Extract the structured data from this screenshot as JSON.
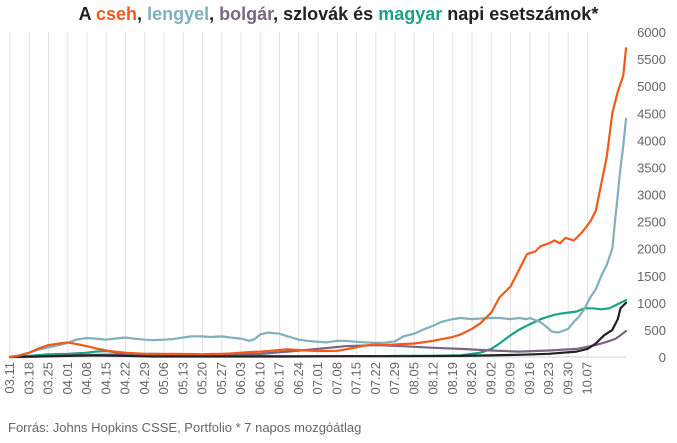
{
  "title": {
    "prefix": "A ",
    "parts": [
      {
        "text": "cseh",
        "color": "#f05a1a"
      },
      {
        "text": ", ",
        "color": "#222222"
      },
      {
        "text": "lengyel",
        "color": "#7fb0bb"
      },
      {
        "text": ", ",
        "color": "#222222"
      },
      {
        "text": "bolgár",
        "color": "#7c6585"
      },
      {
        "text": ", szlovák és ",
        "color": "#222222"
      },
      {
        "text": "magyar",
        "color": "#1aa38a"
      },
      {
        "text": " napi esetszámok*",
        "color": "#222222"
      }
    ]
  },
  "source": "Forrás: Johns Hopkins CSSE, Portfolio   * 7 napos mozgóátlag",
  "chart_data": {
    "type": "line",
    "title": "A cseh, lengyel, bolgár, szlovák és magyar napi esetszámok*",
    "x_ticks": [
      "03.11",
      "03.18",
      "03.25",
      "04.01",
      "04.08",
      "04.15",
      "04.22",
      "04.29",
      "05.06",
      "05.13",
      "05.20",
      "05.27",
      "06.03",
      "06.10",
      "06.17",
      "06.24",
      "07.01",
      "07.08",
      "07.15",
      "07.22",
      "07.29",
      "08.05",
      "08.12",
      "08.19",
      "08.26",
      "09.02",
      "09.09",
      "09.16",
      "09.23",
      "09.30",
      "10.07"
    ],
    "ylim": [
      0,
      6000
    ],
    "y_ticks": [
      0,
      500,
      1000,
      1500,
      2000,
      2500,
      3000,
      3500,
      4000,
      4500,
      5000,
      5500,
      6000
    ],
    "y_axis_position": "right",
    "grid": "vertical",
    "series": [
      {
        "name": "cseh",
        "color": "#f05a1a",
        "points": [
          [
            0,
            0
          ],
          [
            3,
            20
          ],
          [
            7,
            80
          ],
          [
            10,
            150
          ],
          [
            14,
            220
          ],
          [
            18,
            250
          ],
          [
            21,
            270
          ],
          [
            24,
            240
          ],
          [
            28,
            200
          ],
          [
            31,
            160
          ],
          [
            35,
            120
          ],
          [
            38,
            100
          ],
          [
            42,
            80
          ],
          [
            45,
            70
          ],
          [
            49,
            60
          ],
          [
            52,
            55
          ],
          [
            56,
            55
          ],
          [
            59,
            60
          ],
          [
            63,
            55
          ],
          [
            66,
            55
          ],
          [
            70,
            50
          ],
          [
            73,
            55
          ],
          [
            77,
            60
          ],
          [
            80,
            65
          ],
          [
            84,
            80
          ],
          [
            87,
            90
          ],
          [
            91,
            100
          ],
          [
            94,
            110
          ],
          [
            98,
            130
          ],
          [
            101,
            140
          ],
          [
            105,
            130
          ],
          [
            108,
            120
          ],
          [
            112,
            110
          ],
          [
            115,
            110
          ],
          [
            119,
            115
          ],
          [
            122,
            140
          ],
          [
            126,
            180
          ],
          [
            129,
            210
          ],
          [
            133,
            230
          ],
          [
            136,
            220
          ],
          [
            140,
            230
          ],
          [
            143,
            240
          ],
          [
            147,
            250
          ],
          [
            150,
            270
          ],
          [
            154,
            300
          ],
          [
            157,
            330
          ],
          [
            161,
            370
          ],
          [
            164,
            420
          ],
          [
            168,
            520
          ],
          [
            171,
            620
          ],
          [
            175,
            820
          ],
          [
            178,
            1100
          ],
          [
            182,
            1300
          ],
          [
            185,
            1600
          ],
          [
            188,
            1900
          ],
          [
            191,
            1950
          ],
          [
            193,
            2050
          ],
          [
            196,
            2100
          ],
          [
            198,
            2150
          ],
          [
            200,
            2100
          ],
          [
            202,
            2200
          ],
          [
            205,
            2150
          ],
          [
            208,
            2300
          ],
          [
            211,
            2500
          ],
          [
            213,
            2700
          ],
          [
            215,
            3200
          ],
          [
            217,
            3700
          ],
          [
            219,
            4500
          ],
          [
            221,
            4900
          ],
          [
            223,
            5200
          ],
          [
            224,
            5700
          ]
        ]
      },
      {
        "name": "lengyel",
        "color": "#7fb0bb",
        "points": [
          [
            0,
            0
          ],
          [
            3,
            30
          ],
          [
            7,
            80
          ],
          [
            10,
            130
          ],
          [
            14,
            180
          ],
          [
            18,
            220
          ],
          [
            21,
            260
          ],
          [
            24,
            320
          ],
          [
            28,
            350
          ],
          [
            31,
            340
          ],
          [
            35,
            320
          ],
          [
            38,
            340
          ],
          [
            42,
            360
          ],
          [
            45,
            340
          ],
          [
            49,
            320
          ],
          [
            52,
            310
          ],
          [
            56,
            320
          ],
          [
            59,
            330
          ],
          [
            63,
            360
          ],
          [
            66,
            380
          ],
          [
            70,
            380
          ],
          [
            73,
            370
          ],
          [
            77,
            380
          ],
          [
            80,
            360
          ],
          [
            84,
            340
          ],
          [
            87,
            300
          ],
          [
            89,
            330
          ],
          [
            91,
            420
          ],
          [
            94,
            450
          ],
          [
            98,
            430
          ],
          [
            101,
            380
          ],
          [
            105,
            320
          ],
          [
            108,
            300
          ],
          [
            112,
            280
          ],
          [
            115,
            270
          ],
          [
            119,
            300
          ],
          [
            122,
            300
          ],
          [
            126,
            280
          ],
          [
            129,
            270
          ],
          [
            133,
            260
          ],
          [
            136,
            260
          ],
          [
            140,
            290
          ],
          [
            143,
            380
          ],
          [
            147,
            430
          ],
          [
            150,
            500
          ],
          [
            154,
            580
          ],
          [
            157,
            650
          ],
          [
            161,
            700
          ],
          [
            164,
            720
          ],
          [
            168,
            700
          ],
          [
            171,
            710
          ],
          [
            175,
            720
          ],
          [
            178,
            720
          ],
          [
            182,
            700
          ],
          [
            185,
            720
          ],
          [
            188,
            700
          ],
          [
            189,
            720
          ],
          [
            191,
            680
          ],
          [
            193,
            640
          ],
          [
            195,
            560
          ],
          [
            197,
            470
          ],
          [
            199,
            450
          ],
          [
            201,
            480
          ],
          [
            203,
            520
          ],
          [
            205,
            650
          ],
          [
            207,
            750
          ],
          [
            209,
            900
          ],
          [
            211,
            1100
          ],
          [
            213,
            1250
          ],
          [
            215,
            1500
          ],
          [
            217,
            1700
          ],
          [
            219,
            2000
          ],
          [
            220,
            2500
          ],
          [
            221,
            3000
          ],
          [
            222,
            3500
          ],
          [
            223,
            3900
          ],
          [
            224,
            4400
          ]
        ]
      },
      {
        "name": "bolgár",
        "color": "#7c6585",
        "points": [
          [
            0,
            0
          ],
          [
            10,
            10
          ],
          [
            21,
            30
          ],
          [
            31,
            40
          ],
          [
            42,
            50
          ],
          [
            52,
            60
          ],
          [
            63,
            50
          ],
          [
            70,
            40
          ],
          [
            80,
            40
          ],
          [
            91,
            60
          ],
          [
            101,
            100
          ],
          [
            112,
            150
          ],
          [
            122,
            200
          ],
          [
            133,
            220
          ],
          [
            143,
            200
          ],
          [
            154,
            170
          ],
          [
            164,
            150
          ],
          [
            175,
            120
          ],
          [
            185,
            100
          ],
          [
            196,
            120
          ],
          [
            206,
            150
          ],
          [
            213,
            220
          ],
          [
            217,
            280
          ],
          [
            220,
            330
          ],
          [
            222,
            400
          ],
          [
            224,
            480
          ]
        ]
      },
      {
        "name": "szlovák",
        "color": "#222222",
        "points": [
          [
            0,
            0
          ],
          [
            10,
            10
          ],
          [
            21,
            20
          ],
          [
            31,
            30
          ],
          [
            42,
            20
          ],
          [
            52,
            10
          ],
          [
            63,
            10
          ],
          [
            80,
            10
          ],
          [
            101,
            10
          ],
          [
            122,
            15
          ],
          [
            143,
            15
          ],
          [
            164,
            20
          ],
          [
            185,
            40
          ],
          [
            196,
            60
          ],
          [
            206,
            100
          ],
          [
            210,
            150
          ],
          [
            213,
            250
          ],
          [
            216,
            400
          ],
          [
            219,
            500
          ],
          [
            221,
            700
          ],
          [
            222,
            900
          ],
          [
            223,
            950
          ],
          [
            224,
            1000
          ]
        ]
      },
      {
        "name": "magyar",
        "color": "#1aa38a",
        "points": [
          [
            0,
            0
          ],
          [
            7,
            20
          ],
          [
            14,
            50
          ],
          [
            21,
            60
          ],
          [
            28,
            80
          ],
          [
            31,
            100
          ],
          [
            35,
            110
          ],
          [
            38,
            90
          ],
          [
            42,
            70
          ],
          [
            49,
            50
          ],
          [
            56,
            40
          ],
          [
            63,
            30
          ],
          [
            70,
            30
          ],
          [
            80,
            25
          ],
          [
            91,
            20
          ],
          [
            101,
            15
          ],
          [
            112,
            15
          ],
          [
            122,
            15
          ],
          [
            133,
            15
          ],
          [
            143,
            20
          ],
          [
            154,
            20
          ],
          [
            164,
            30
          ],
          [
            171,
            80
          ],
          [
            175,
            150
          ],
          [
            178,
            250
          ],
          [
            182,
            400
          ],
          [
            185,
            500
          ],
          [
            188,
            580
          ],
          [
            191,
            650
          ],
          [
            193,
            700
          ],
          [
            196,
            750
          ],
          [
            198,
            780
          ],
          [
            200,
            800
          ],
          [
            203,
            820
          ],
          [
            206,
            840
          ],
          [
            209,
            900
          ],
          [
            212,
            900
          ],
          [
            215,
            880
          ],
          [
            218,
            900
          ],
          [
            220,
            950
          ],
          [
            222,
            1000
          ],
          [
            224,
            1050
          ]
        ]
      }
    ]
  }
}
